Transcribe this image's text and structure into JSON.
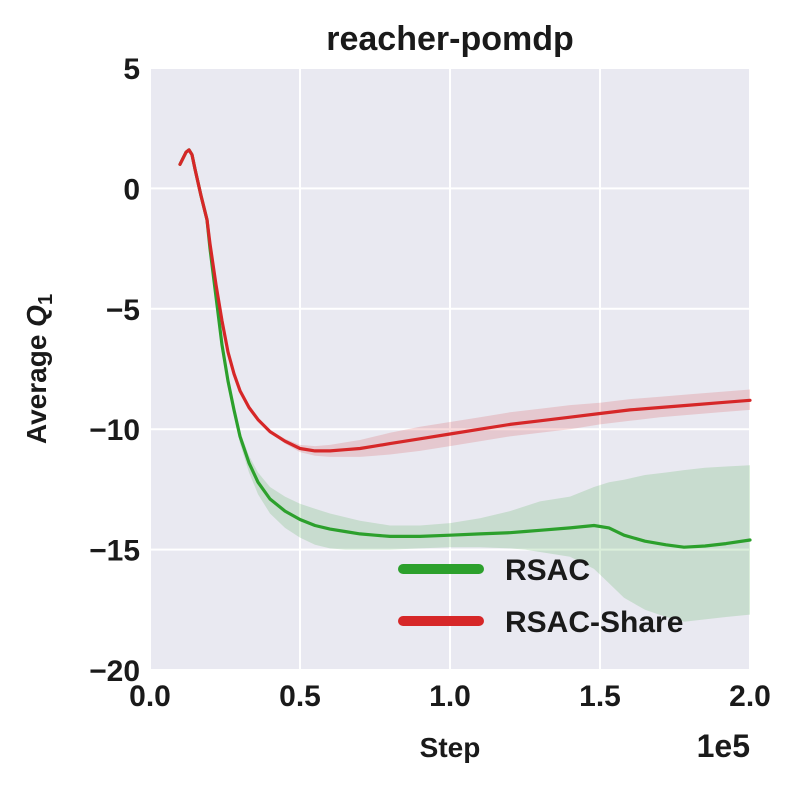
{
  "chart_data": {
    "type": "line",
    "title": "reacher-pomdp",
    "xlabel": "Step",
    "ylabel_prefix": "Average ",
    "ylabel_var": "Q",
    "ylabel_sub": "1",
    "x_scale_label": "1e5",
    "xlim": [
      0,
      2.0
    ],
    "ylim": [
      -20,
      5
    ],
    "x_ticks": [
      0.0,
      0.5,
      1.0,
      1.5,
      2.0
    ],
    "x_tick_labels": [
      "0.0",
      "0.5",
      "1.0",
      "1.5",
      "2.0"
    ],
    "y_ticks": [
      5,
      0,
      -5,
      -10,
      -15,
      -20
    ],
    "y_tick_labels": [
      "5",
      "0",
      "−5",
      "−10",
      "−15",
      "−20"
    ],
    "grid": true,
    "legend_position": "lower-right",
    "colors": {
      "background": "#e9e9f1",
      "grid": "#ffffff"
    },
    "series": [
      {
        "name": "RSAC",
        "color": "#2ca02c",
        "x": [
          0.1,
          0.12,
          0.13,
          0.14,
          0.15,
          0.17,
          0.19,
          0.2,
          0.22,
          0.24,
          0.26,
          0.28,
          0.3,
          0.33,
          0.36,
          0.4,
          0.45,
          0.5,
          0.55,
          0.6,
          0.65,
          0.7,
          0.75,
          0.8,
          0.9,
          1.0,
          1.1,
          1.2,
          1.25,
          1.3,
          1.4,
          1.48,
          1.53,
          1.58,
          1.65,
          1.72,
          1.78,
          1.85,
          1.92,
          2.0
        ],
        "y": [
          1.0,
          1.5,
          1.6,
          1.4,
          0.8,
          -0.3,
          -1.3,
          -2.5,
          -4.5,
          -6.5,
          -8.0,
          -9.2,
          -10.3,
          -11.4,
          -12.2,
          -12.9,
          -13.4,
          -13.75,
          -14.0,
          -14.15,
          -14.25,
          -14.35,
          -14.4,
          -14.45,
          -14.45,
          -14.4,
          -14.35,
          -14.3,
          -14.25,
          -14.2,
          -14.1,
          -14.0,
          -14.1,
          -14.4,
          -14.65,
          -14.8,
          -14.9,
          -14.85,
          -14.75,
          -14.6
        ],
        "band_upper": [
          1.0,
          1.5,
          1.6,
          1.4,
          0.8,
          -0.3,
          -1.3,
          -2.5,
          -4.5,
          -6.5,
          -8.0,
          -9.1,
          -10.1,
          -11.1,
          -11.8,
          -12.4,
          -12.8,
          -13.1,
          -13.3,
          -13.5,
          -13.65,
          -13.8,
          -13.9,
          -14.0,
          -14.0,
          -13.9,
          -13.7,
          -13.4,
          -13.2,
          -13.0,
          -12.8,
          -12.4,
          -12.2,
          -12.1,
          -11.9,
          -11.8,
          -11.7,
          -11.6,
          -11.55,
          -11.5
        ],
        "band_lower": [
          1.0,
          1.5,
          1.6,
          1.4,
          0.8,
          -0.3,
          -1.3,
          -2.5,
          -4.5,
          -6.6,
          -8.2,
          -9.4,
          -10.6,
          -11.8,
          -12.7,
          -13.5,
          -14.1,
          -14.5,
          -14.8,
          -14.95,
          -15.0,
          -15.0,
          -15.0,
          -15.0,
          -14.95,
          -14.9,
          -14.9,
          -14.95,
          -15.0,
          -15.1,
          -15.3,
          -15.8,
          -16.4,
          -17.0,
          -17.5,
          -17.8,
          -18.0,
          -17.9,
          -17.8,
          -17.7
        ]
      },
      {
        "name": "RSAC-Share",
        "color": "#d62728",
        "x": [
          0.1,
          0.12,
          0.13,
          0.14,
          0.15,
          0.17,
          0.19,
          0.2,
          0.22,
          0.24,
          0.26,
          0.28,
          0.3,
          0.33,
          0.36,
          0.4,
          0.45,
          0.5,
          0.55,
          0.6,
          0.65,
          0.7,
          0.75,
          0.8,
          0.9,
          1.0,
          1.1,
          1.2,
          1.3,
          1.4,
          1.5,
          1.6,
          1.7,
          1.8,
          1.9,
          2.0
        ],
        "y": [
          1.0,
          1.5,
          1.6,
          1.4,
          0.8,
          -0.3,
          -1.3,
          -2.3,
          -4.0,
          -5.5,
          -6.8,
          -7.7,
          -8.4,
          -9.1,
          -9.6,
          -10.1,
          -10.5,
          -10.8,
          -10.9,
          -10.9,
          -10.85,
          -10.8,
          -10.7,
          -10.6,
          -10.4,
          -10.2,
          -10.0,
          -9.8,
          -9.65,
          -9.5,
          -9.35,
          -9.2,
          -9.1,
          -9.0,
          -8.9,
          -8.8
        ],
        "band_upper": [
          1.0,
          1.5,
          1.6,
          1.4,
          0.8,
          -0.3,
          -1.3,
          -2.3,
          -4.0,
          -5.5,
          -6.8,
          -7.7,
          -8.4,
          -9.1,
          -9.6,
          -10.05,
          -10.4,
          -10.65,
          -10.7,
          -10.65,
          -10.55,
          -10.45,
          -10.3,
          -10.15,
          -9.9,
          -9.7,
          -9.5,
          -9.3,
          -9.15,
          -9.0,
          -8.9,
          -8.75,
          -8.65,
          -8.55,
          -8.45,
          -8.35
        ],
        "band_lower": [
          1.0,
          1.5,
          1.6,
          1.4,
          0.8,
          -0.3,
          -1.3,
          -2.3,
          -4.0,
          -5.5,
          -6.8,
          -7.7,
          -8.4,
          -9.1,
          -9.6,
          -10.15,
          -10.6,
          -10.95,
          -11.1,
          -11.15,
          -11.15,
          -11.15,
          -11.1,
          -11.05,
          -10.9,
          -10.7,
          -10.5,
          -10.3,
          -10.15,
          -10.0,
          -9.8,
          -9.65,
          -9.5,
          -9.4,
          -9.3,
          -9.2
        ]
      }
    ]
  }
}
